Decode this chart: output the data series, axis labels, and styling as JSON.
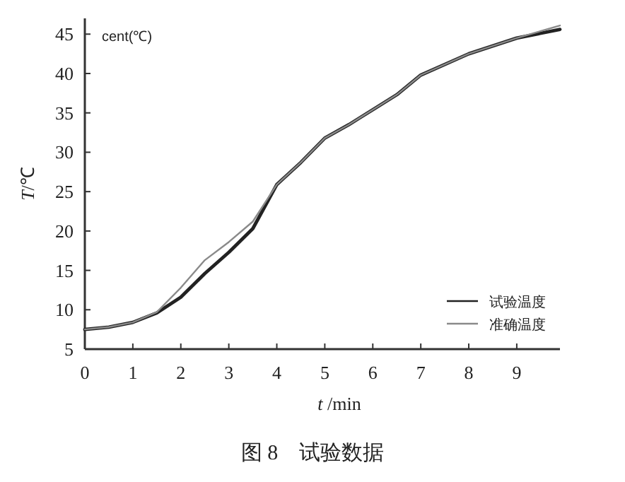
{
  "chart_data": {
    "type": "line",
    "title": "图 8　试验数据",
    "xlabel": "*t* /min",
    "ylabel": "*T*/℃",
    "annotations": [
      "cent(℃)"
    ],
    "xlim": [
      0,
      9.9
    ],
    "ylim": [
      5,
      47
    ],
    "xticks": [
      0,
      1,
      2,
      3,
      4,
      5,
      6,
      7,
      8,
      9
    ],
    "yticks": [
      5,
      10,
      15,
      20,
      25,
      30,
      35,
      40,
      45
    ],
    "grid": false,
    "legend": "bottom right",
    "series": [
      {
        "name": "试验温度",
        "color": "#222222",
        "x": [
          0,
          0.5,
          1,
          1.5,
          2,
          2.5,
          3,
          3.5,
          4,
          4.5,
          5,
          5.5,
          6,
          6.5,
          7,
          8,
          9,
          9.9
        ],
        "values": [
          7.5,
          7.8,
          8.4,
          9.6,
          11.6,
          14.6,
          17.3,
          20.3,
          25.9,
          28.7,
          31.8,
          33.5,
          35.4,
          37.3,
          39.8,
          42.5,
          44.5,
          45.6
        ]
      },
      {
        "name": "准确温度",
        "color": "#8a8a8a",
        "x": [
          0,
          0.5,
          1,
          1.5,
          2,
          2.5,
          3,
          3.5,
          4,
          4.5,
          5,
          5.5,
          6,
          6.5,
          7,
          8,
          9,
          9.9
        ],
        "values": [
          7.5,
          7.8,
          8.4,
          9.7,
          12.8,
          16.3,
          18.6,
          21.2,
          25.9,
          28.7,
          31.8,
          33.5,
          35.4,
          37.3,
          39.8,
          42.5,
          44.5,
          46.1
        ]
      }
    ]
  }
}
